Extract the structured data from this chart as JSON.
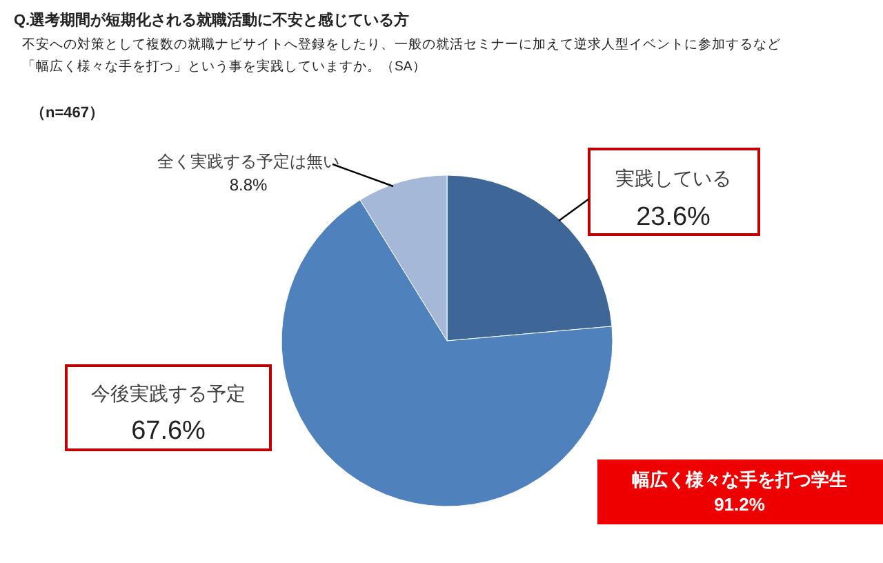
{
  "chart_data": {
    "type": "pie",
    "title": "Q.選考期間が短期化される就職活動に不安と感じている方",
    "subtitle": "不安への対策として複数の就職ナビサイトへ登録をしたり、一般の就活セミナーに加えて逆求人型イベントに参加するなど",
    "categories": [
      "実践している",
      "今後実践する予定",
      "全く実践する予定は無い"
    ],
    "values": [
      23.6,
      67.6,
      8.8
    ],
    "value_labels": [
      "23.6%",
      "67.6%",
      "8.8%"
    ],
    "colors": [
      "#3e6797",
      "#4f81bd",
      "#a6b8d8"
    ],
    "annotations": [
      "「幅広く様々な手を打つ」という事を実践していますか。（SA）",
      "（n=467）",
      "幅広く様々な手を打つ学生\n91.2%"
    ]
  }
}
